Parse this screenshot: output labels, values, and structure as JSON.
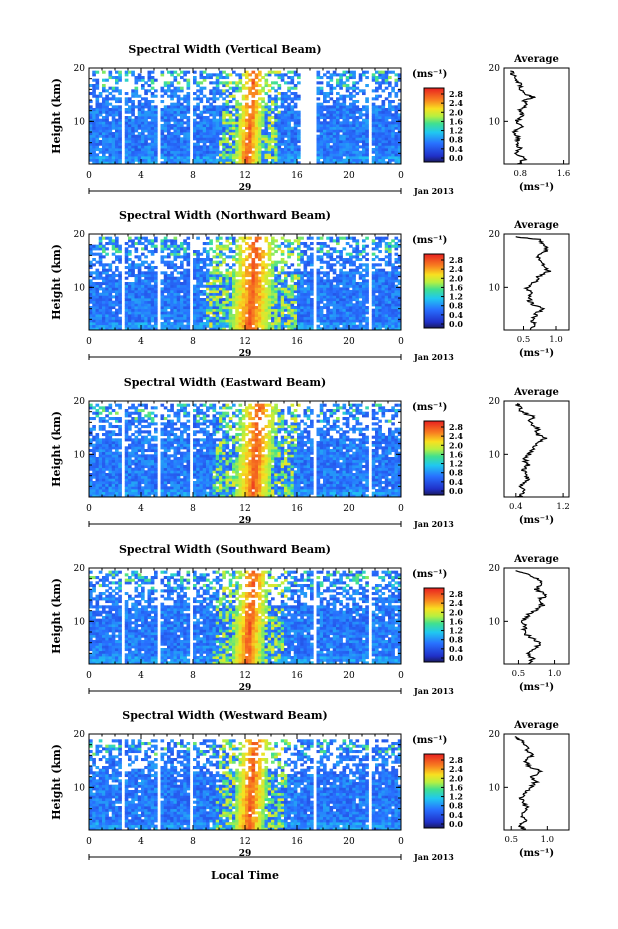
{
  "figure": {
    "month_label": "Jan 2013",
    "xlabel": "Local Time",
    "unit_label": "(ms⁻¹)",
    "avg_title": "Average",
    "avg_xlabel": "(ms⁻¹)",
    "ylabel": "Height (km)"
  },
  "chart_data": [
    {
      "type": "heatmap",
      "title": "Spectral Width (Vertical Beam)",
      "xlabel": "Local Time",
      "ylabel": "Height (km)",
      "x_ticks": [
        "0",
        "4",
        "8",
        "12",
        "16",
        "20",
        "0"
      ],
      "xlim": [
        0,
        24
      ],
      "y_ticks": [
        "10",
        "20"
      ],
      "ylim": [
        2,
        20
      ],
      "date_label": "29",
      "gaps": [
        [
          2.5,
          2.7
        ],
        [
          5.3,
          5.5
        ],
        [
          7.7,
          7.9
        ],
        [
          16.3,
          17.4
        ],
        [
          21.5,
          21.8
        ]
      ],
      "core": {
        "x": 12.4,
        "width": 1.0
      },
      "data_top": 19.5,
      "colorbar": {
        "unit": "(ms⁻¹)",
        "ticks": [
          "0.0",
          "0.4",
          "0.8",
          "1.2",
          "1.6",
          "2.0",
          "2.4",
          "2.8"
        ]
      },
      "average": {
        "title": "Average",
        "xlabel": "(ms⁻¹)",
        "x_ticks": [
          "0.8",
          "1.6"
        ],
        "xlim": [
          0.5,
          1.7
        ],
        "profile": [
          [
            2,
            0.78
          ],
          [
            3,
            0.9
          ],
          [
            4,
            0.72
          ],
          [
            5,
            0.8
          ],
          [
            6,
            0.72
          ],
          [
            7,
            0.78
          ],
          [
            8,
            0.7
          ],
          [
            9,
            0.82
          ],
          [
            10,
            0.72
          ],
          [
            11,
            0.84
          ],
          [
            12,
            0.78
          ],
          [
            13,
            0.9
          ],
          [
            14,
            0.86
          ],
          [
            14.5,
            1.05
          ],
          [
            15,
            0.95
          ],
          [
            16,
            0.78
          ],
          [
            17,
            0.82
          ],
          [
            18,
            0.7
          ],
          [
            19,
            0.66
          ],
          [
            19.5,
            0.62
          ]
        ]
      }
    },
    {
      "type": "heatmap",
      "title": "Spectral Width (Northward Beam)",
      "xlabel": "Local Time",
      "ylabel": "Height (km)",
      "x_ticks": [
        "0",
        "4",
        "8",
        "12",
        "16",
        "20",
        "0"
      ],
      "xlim": [
        0,
        24
      ],
      "y_ticks": [
        "10",
        "20"
      ],
      "ylim": [
        2,
        20
      ],
      "date_label": "29",
      "gaps": [
        [
          2.5,
          2.8
        ],
        [
          5.2,
          5.6
        ],
        [
          7.7,
          7.9
        ],
        [
          17.2,
          17.4
        ],
        [
          21.5,
          21.8
        ]
      ],
      "core": {
        "x": 12.6,
        "width": 1.6
      },
      "data_top": 19.5,
      "colorbar": {
        "unit": "(ms⁻¹)",
        "ticks": [
          "0.0",
          "0.4",
          "0.8",
          "1.2",
          "1.6",
          "2.0",
          "2.4",
          "2.8"
        ]
      },
      "average": {
        "title": "Average",
        "xlabel": "(ms⁻¹)",
        "x_ticks": [
          "0.5",
          "1.0"
        ],
        "xlim": [
          0.2,
          1.2
        ],
        "profile": [
          [
            2,
            0.6
          ],
          [
            3,
            0.68
          ],
          [
            4,
            0.62
          ],
          [
            5,
            0.7
          ],
          [
            6,
            0.78
          ],
          [
            7,
            0.62
          ],
          [
            8,
            0.58
          ],
          [
            9,
            0.62
          ],
          [
            10,
            0.55
          ],
          [
            11,
            0.68
          ],
          [
            12,
            0.72
          ],
          [
            13,
            0.9
          ],
          [
            14,
            0.82
          ],
          [
            15,
            0.78
          ],
          [
            16,
            0.72
          ],
          [
            17,
            0.86
          ],
          [
            18,
            0.8
          ],
          [
            19,
            0.72
          ],
          [
            19.5,
            0.38
          ]
        ]
      }
    },
    {
      "type": "heatmap",
      "title": "Spectral Width (Eastward Beam)",
      "xlabel": "Local Time",
      "ylabel": "Height (km)",
      "x_ticks": [
        "0",
        "4",
        "8",
        "12",
        "16",
        "20",
        "0"
      ],
      "xlim": [
        0,
        24
      ],
      "y_ticks": [
        "10",
        "20"
      ],
      "ylim": [
        2,
        20
      ],
      "date_label": "29",
      "gaps": [
        [
          2.5,
          2.8
        ],
        [
          5.3,
          5.6
        ],
        [
          7.8,
          8.0
        ],
        [
          17.2,
          17.4
        ],
        [
          21.4,
          21.7
        ]
      ],
      "core": {
        "x": 12.8,
        "width": 1.4
      },
      "data_top": 19.5,
      "colorbar": {
        "unit": "(ms⁻¹)",
        "ticks": [
          "0.0",
          "0.4",
          "0.8",
          "1.2",
          "1.6",
          "2.0",
          "2.4",
          "2.8"
        ]
      },
      "average": {
        "title": "Average",
        "xlabel": "(ms⁻¹)",
        "x_ticks": [
          "0.4",
          "1.2"
        ],
        "xlim": [
          0.2,
          1.3
        ],
        "profile": [
          [
            2,
            0.45
          ],
          [
            3,
            0.55
          ],
          [
            4,
            0.5
          ],
          [
            5,
            0.58
          ],
          [
            6,
            0.6
          ],
          [
            7,
            0.52
          ],
          [
            8,
            0.6
          ],
          [
            9,
            0.55
          ],
          [
            10,
            0.62
          ],
          [
            11,
            0.7
          ],
          [
            12,
            0.78
          ],
          [
            13,
            0.9
          ],
          [
            14,
            0.72
          ],
          [
            15,
            0.78
          ],
          [
            16,
            0.62
          ],
          [
            17,
            0.7
          ],
          [
            18,
            0.5
          ],
          [
            19,
            0.45
          ],
          [
            19.5,
            0.42
          ]
        ]
      }
    },
    {
      "type": "heatmap",
      "title": "Spectral Width (Southward Beam)",
      "xlabel": "Local Time",
      "ylabel": "Height (km)",
      "x_ticks": [
        "0",
        "4",
        "8",
        "12",
        "16",
        "20",
        "0"
      ],
      "xlim": [
        0,
        24
      ],
      "y_ticks": [
        "10",
        "20"
      ],
      "ylim": [
        2,
        20
      ],
      "date_label": "29",
      "gaps": [
        [
          2.5,
          2.8
        ],
        [
          5.3,
          5.6
        ],
        [
          7.7,
          7.9
        ],
        [
          17.2,
          17.4
        ],
        [
          21.4,
          21.7
        ]
      ],
      "core": {
        "x": 12.4,
        "width": 1.2
      },
      "data_top": 19.5,
      "colorbar": {
        "unit": "(ms⁻¹)",
        "ticks": [
          "0.0",
          "0.4",
          "0.8",
          "1.2",
          "1.6",
          "2.0",
          "2.4",
          "2.8"
        ]
      },
      "average": {
        "title": "Average",
        "xlabel": "(ms⁻¹)",
        "x_ticks": [
          "0.5",
          "1.0"
        ],
        "xlim": [
          0.3,
          1.2
        ],
        "profile": [
          [
            2,
            0.62
          ],
          [
            3,
            0.7
          ],
          [
            4,
            0.62
          ],
          [
            5,
            0.74
          ],
          [
            6,
            0.8
          ],
          [
            7,
            0.66
          ],
          [
            8,
            0.58
          ],
          [
            9,
            0.6
          ],
          [
            10,
            0.56
          ],
          [
            11,
            0.62
          ],
          [
            12,
            0.72
          ],
          [
            13,
            0.84
          ],
          [
            14,
            0.78
          ],
          [
            15,
            0.9
          ],
          [
            16,
            0.74
          ],
          [
            17,
            0.84
          ],
          [
            18,
            0.74
          ],
          [
            19,
            0.6
          ],
          [
            19.5,
            0.46
          ]
        ]
      }
    },
    {
      "type": "heatmap",
      "title": "Spectral Width (Westward Beam)",
      "xlabel": "Local Time",
      "ylabel": "Height (km)",
      "x_ticks": [
        "0",
        "4",
        "8",
        "12",
        "16",
        "20",
        "0"
      ],
      "xlim": [
        0,
        24
      ],
      "y_ticks": [
        "10",
        "20"
      ],
      "ylim": [
        2,
        20
      ],
      "date_label": "29",
      "gaps": [
        [
          2.5,
          2.8
        ],
        [
          5.3,
          5.6
        ],
        [
          7.7,
          7.9
        ],
        [
          17.2,
          17.4
        ],
        [
          21.5,
          21.8
        ]
      ],
      "core": {
        "x": 12.5,
        "width": 1.2
      },
      "data_top": 19.0,
      "colorbar": {
        "unit": "(ms⁻¹)",
        "ticks": [
          "0.0",
          "0.4",
          "0.8",
          "1.2",
          "1.6",
          "2.0",
          "2.4",
          "2.8"
        ]
      },
      "average": {
        "title": "Average",
        "xlabel": "(ms⁻¹)",
        "x_ticks": [
          "0.5",
          "1.0"
        ],
        "xlim": [
          0.4,
          1.3
        ],
        "profile": [
          [
            2,
            0.68
          ],
          [
            3,
            0.62
          ],
          [
            4,
            0.7
          ],
          [
            5,
            0.64
          ],
          [
            6,
            0.72
          ],
          [
            7,
            0.68
          ],
          [
            8,
            0.62
          ],
          [
            9,
            0.7
          ],
          [
            10,
            0.76
          ],
          [
            11,
            0.84
          ],
          [
            12,
            0.8
          ],
          [
            13,
            0.9
          ],
          [
            14,
            0.74
          ],
          [
            15,
            0.68
          ],
          [
            16,
            0.8
          ],
          [
            17,
            0.72
          ],
          [
            18,
            0.7
          ],
          [
            19,
            0.62
          ],
          [
            19.5,
            0.55
          ]
        ]
      }
    }
  ]
}
